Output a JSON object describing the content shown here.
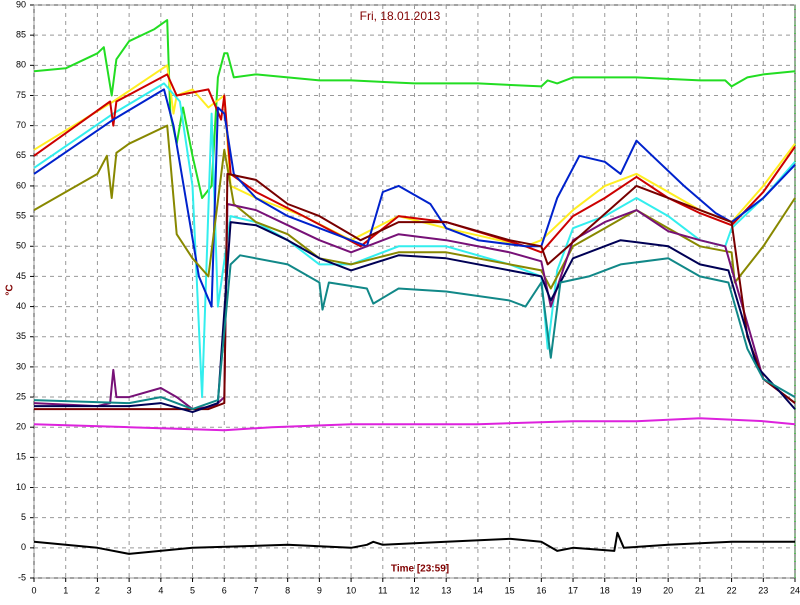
{
  "chart_data": {
    "type": "line",
    "title": "Fri, 18.01.2013",
    "xlabel": "Time [23:59]",
    "ylabel": "°C",
    "xlim": [
      0,
      24
    ],
    "xticks": [
      0,
      1,
      2,
      3,
      4,
      5,
      6,
      7,
      8,
      9,
      10,
      11,
      12,
      13,
      14,
      15,
      16,
      17,
      18,
      19,
      20,
      21,
      22,
      23,
      24
    ],
    "ylim": [
      -5,
      90
    ],
    "yticks": [
      -5,
      0,
      5,
      10,
      15,
      20,
      25,
      30,
      35,
      40,
      45,
      50,
      55,
      60,
      65,
      70,
      75,
      80,
      85,
      90
    ],
    "grid": true,
    "series": [
      {
        "color": "#22dd22",
        "x": [
          0,
          1,
          2,
          2.2,
          2.45,
          2.6,
          3,
          3.8,
          4.2,
          4.3,
          4.5,
          4.7,
          5.0,
          5.3,
          5.6,
          5.8,
          6.0,
          6.1,
          6.3,
          7,
          8,
          9,
          10,
          12,
          14,
          16,
          16.2,
          16.5,
          17,
          19,
          21,
          21.8,
          22,
          22.5,
          23,
          24
        ],
        "values": [
          79,
          79.5,
          82,
          83,
          75,
          81,
          84,
          86,
          87.5,
          72,
          67,
          73,
          65,
          58,
          60,
          78,
          82,
          82,
          78,
          78.5,
          78,
          77.5,
          77.5,
          77,
          77,
          76.5,
          77.5,
          77,
          78,
          78,
          77.5,
          77.5,
          76.5,
          78,
          78.5,
          79
        ]
      },
      {
        "color": "#ffee22",
        "x": [
          0,
          2.5,
          4.2,
          4.4,
          4.5,
          5,
          5.5,
          6.0,
          6.2,
          7,
          8.5,
          10,
          11.5,
          13,
          15.5,
          16,
          17,
          18,
          19,
          20,
          21,
          22,
          23,
          24
        ],
        "values": [
          66,
          74,
          80,
          72,
          75,
          76,
          73,
          75,
          60,
          58,
          55,
          51,
          55,
          53,
          50,
          51,
          56,
          60,
          62,
          59,
          56,
          54,
          60,
          67
        ]
      },
      {
        "color": "#33eeee",
        "x": [
          0,
          2.5,
          4.1,
          4.6,
          5.0,
          5.3,
          5.6,
          5.8,
          6.2,
          7,
          8,
          9,
          10,
          11.5,
          13,
          15,
          16,
          16.2,
          16.5,
          17,
          18,
          19,
          20,
          21,
          21.8,
          22,
          23,
          24
        ],
        "values": [
          63,
          72,
          77,
          74,
          60,
          25,
          72,
          40,
          55,
          54,
          51,
          47,
          47,
          50,
          50,
          47,
          45,
          33,
          46,
          53,
          55,
          58,
          55,
          51,
          50,
          53,
          58,
          64
        ]
      },
      {
        "color": "#cc0000",
        "x": [
          0,
          2.4,
          2.5,
          2.6,
          4.2,
          4.5,
          5.5,
          5.9,
          6.0,
          6.2,
          7,
          8.5,
          10.3,
          11.5,
          13,
          15.5,
          16,
          17,
          18,
          19,
          20,
          21,
          22,
          23,
          24
        ],
        "values": [
          65,
          74,
          70,
          74,
          78.5,
          75,
          76,
          71,
          75,
          62,
          59,
          55,
          50,
          55,
          54,
          50,
          49,
          55,
          58,
          61.5,
          58,
          55.5,
          53.5,
          59,
          66.5
        ]
      },
      {
        "color": "#0022cc",
        "x": [
          0,
          2.5,
          4.1,
          4.4,
          5.2,
          5.6,
          5.8,
          6.0,
          6.3,
          7,
          8,
          9.5,
          10.5,
          11,
          11.5,
          12.5,
          13,
          14,
          15.5,
          16,
          16.5,
          17.2,
          18,
          18.5,
          19,
          19.5,
          20.5,
          21.5,
          22,
          23,
          24
        ],
        "values": [
          62,
          71,
          76,
          70,
          45,
          40,
          73,
          72,
          62,
          58,
          55,
          52,
          50,
          59,
          60,
          57,
          53,
          51,
          50,
          50,
          58,
          65,
          64,
          62,
          67.5,
          65,
          60,
          55.5,
          54,
          58,
          63.5
        ]
      },
      {
        "color": "#888800",
        "x": [
          0,
          2,
          2.3,
          2.45,
          2.6,
          3,
          4.2,
          4.5,
          5,
          5.5,
          6.0,
          6.3,
          7,
          8,
          9,
          10,
          11.5,
          13,
          15,
          16,
          16.3,
          17,
          18,
          19,
          20,
          21,
          22,
          22.1,
          23,
          24
        ],
        "values": [
          56,
          62,
          65,
          58,
          65.5,
          67,
          70,
          52,
          48,
          45,
          66,
          57,
          54,
          52,
          48,
          47,
          49,
          49,
          47,
          46,
          43,
          50,
          53,
          56,
          53,
          50,
          49,
          44,
          50,
          58
        ]
      },
      {
        "color": "#771177",
        "x": [
          0,
          2,
          2.4,
          2.5,
          2.6,
          3,
          4,
          4.5,
          5,
          5.7,
          6.0,
          6.1,
          7,
          8,
          9,
          10,
          11.5,
          13,
          15,
          16,
          16.3,
          17,
          18,
          19,
          20,
          21,
          21.8,
          23,
          24
        ],
        "values": [
          24,
          23.5,
          24,
          29.5,
          25,
          25,
          26.5,
          25,
          23,
          23.5,
          25,
          57,
          56,
          53.5,
          51,
          49,
          52,
          51,
          49,
          47.5,
          40,
          51,
          54,
          56,
          52.5,
          51,
          50,
          28,
          24
        ]
      },
      {
        "color": "#770000",
        "x": [
          0,
          5.5,
          6,
          6.1,
          7,
          8,
          9,
          10.3,
          11.5,
          13,
          15,
          16,
          16.2,
          19,
          22,
          22.5,
          23,
          24
        ],
        "values": [
          23,
          23,
          24,
          62,
          61,
          57,
          55,
          51,
          54,
          54,
          51,
          50,
          47,
          60,
          54,
          35,
          28,
          24
        ]
      },
      {
        "color": "#000055",
        "x": [
          0,
          3,
          4,
          5,
          5.8,
          6.2,
          7,
          8,
          9,
          10,
          11.5,
          13,
          15,
          16,
          16.3,
          17,
          18.5,
          20,
          21,
          21.9,
          22.8,
          23.5,
          24
        ],
        "values": [
          23.5,
          23.5,
          24,
          22.5,
          24,
          54,
          53.5,
          51,
          48,
          46,
          48.5,
          48,
          46,
          45,
          41,
          48,
          51,
          50,
          47,
          46,
          30,
          26,
          23
        ]
      },
      {
        "color": "#118888",
        "x": [
          0,
          3,
          4,
          5,
          5.8,
          6.2,
          6.5,
          8,
          9,
          9.1,
          9.3,
          10.5,
          10.7,
          11.5,
          13,
          15,
          15.5,
          16,
          16.3,
          16.6,
          17.5,
          18.5,
          20,
          21,
          21.9,
          22.5,
          23,
          24
        ],
        "values": [
          24.5,
          24,
          25,
          23,
          24.5,
          47,
          48.5,
          47,
          44,
          39.5,
          44,
          43,
          40.5,
          43,
          42.5,
          41,
          40,
          44,
          31.5,
          44,
          45,
          47,
          48,
          45,
          44,
          33,
          28,
          25
        ]
      },
      {
        "color": "#dd22dd",
        "x": [
          0,
          3,
          6,
          7.5,
          10,
          14,
          17,
          19,
          21,
          23,
          24
        ],
        "values": [
          20.5,
          20,
          19.5,
          20,
          20.5,
          20.5,
          21,
          21,
          21.5,
          21,
          20.5
        ]
      },
      {
        "color": "#000000",
        "x": [
          0,
          2,
          3,
          5,
          8,
          10,
          10.5,
          10.7,
          11,
          13,
          15,
          16,
          16.5,
          17,
          18.3,
          18.4,
          18.6,
          20,
          22,
          24
        ],
        "values": [
          1,
          0,
          -1,
          0,
          0.5,
          0,
          0.5,
          1,
          0.5,
          1,
          1.5,
          1,
          -0.5,
          0,
          -0.5,
          2.5,
          0,
          0.5,
          1,
          1
        ]
      }
    ]
  }
}
